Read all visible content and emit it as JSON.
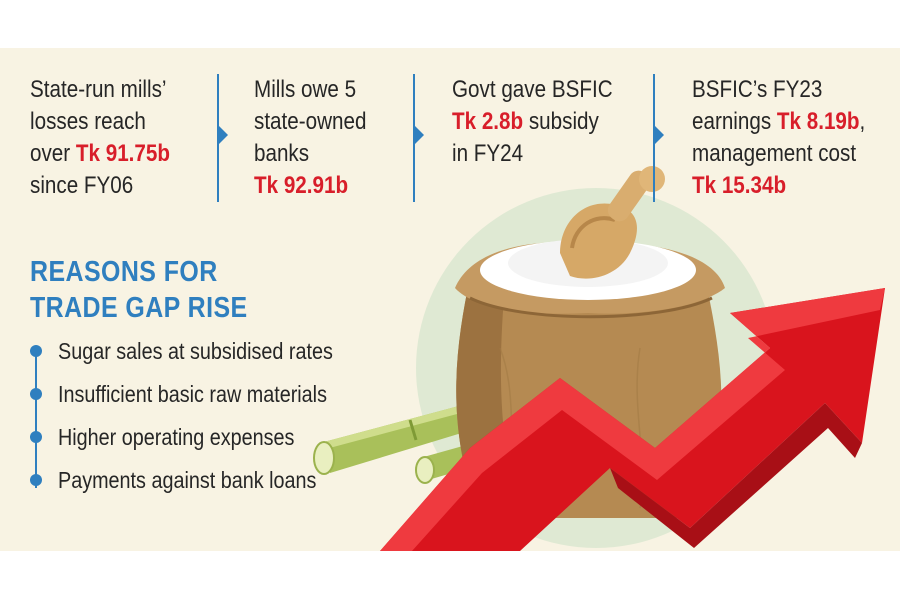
{
  "stats": [
    {
      "lines": [
        {
          "parts": [
            "State-run mills’"
          ]
        },
        {
          "parts": [
            "losses reach"
          ]
        },
        {
          "parts": [
            "over "
          ],
          "highlight": "Tk 91.75b"
        },
        {
          "parts": [
            "since FY06"
          ]
        }
      ]
    },
    {
      "lines": [
        {
          "parts": [
            "Mills owe 5"
          ]
        },
        {
          "parts": [
            "state-owned"
          ]
        },
        {
          "parts": [
            "banks"
          ]
        },
        {
          "parts": [
            ""
          ],
          "highlight": "Tk 92.91b"
        }
      ]
    },
    {
      "lines": [
        {
          "parts": [
            "Govt gave BSFIC"
          ]
        },
        {
          "parts": [
            ""
          ],
          "highlight": "Tk 2.8b",
          "after": " subsidy"
        },
        {
          "parts": [
            "in FY24"
          ]
        }
      ]
    },
    {
      "lines": [
        {
          "parts": [
            "BSFIC’s FY23"
          ]
        },
        {
          "parts": [
            "earnings "
          ],
          "highlight": "Tk 8.19b",
          "after": ","
        },
        {
          "parts": [
            "management cost"
          ]
        },
        {
          "parts": [
            ""
          ],
          "highlight": "Tk 15.34b"
        }
      ]
    }
  ],
  "reasons_heading_line1": "REASONS FOR",
  "reasons_heading_line2": "TRADE GAP RISE",
  "reasons": [
    "Sugar sales at subsidised rates",
    "Insufficient basic raw materials",
    "Higher operating expenses",
    "Payments against bank loans"
  ],
  "colors": {
    "background": "#f8f3e3",
    "accent_blue": "#2f7fbf",
    "highlight_red": "#d81e2a",
    "arrow_red": "#d9141d",
    "circle_green": "#dfe9d3",
    "sack_brown": "#b58a52"
  },
  "icons": [
    "rising-arrow-icon",
    "sugar-sack-icon",
    "wooden-scoop-icon",
    "sugarcane-icon",
    "chevron-right-icon"
  ]
}
